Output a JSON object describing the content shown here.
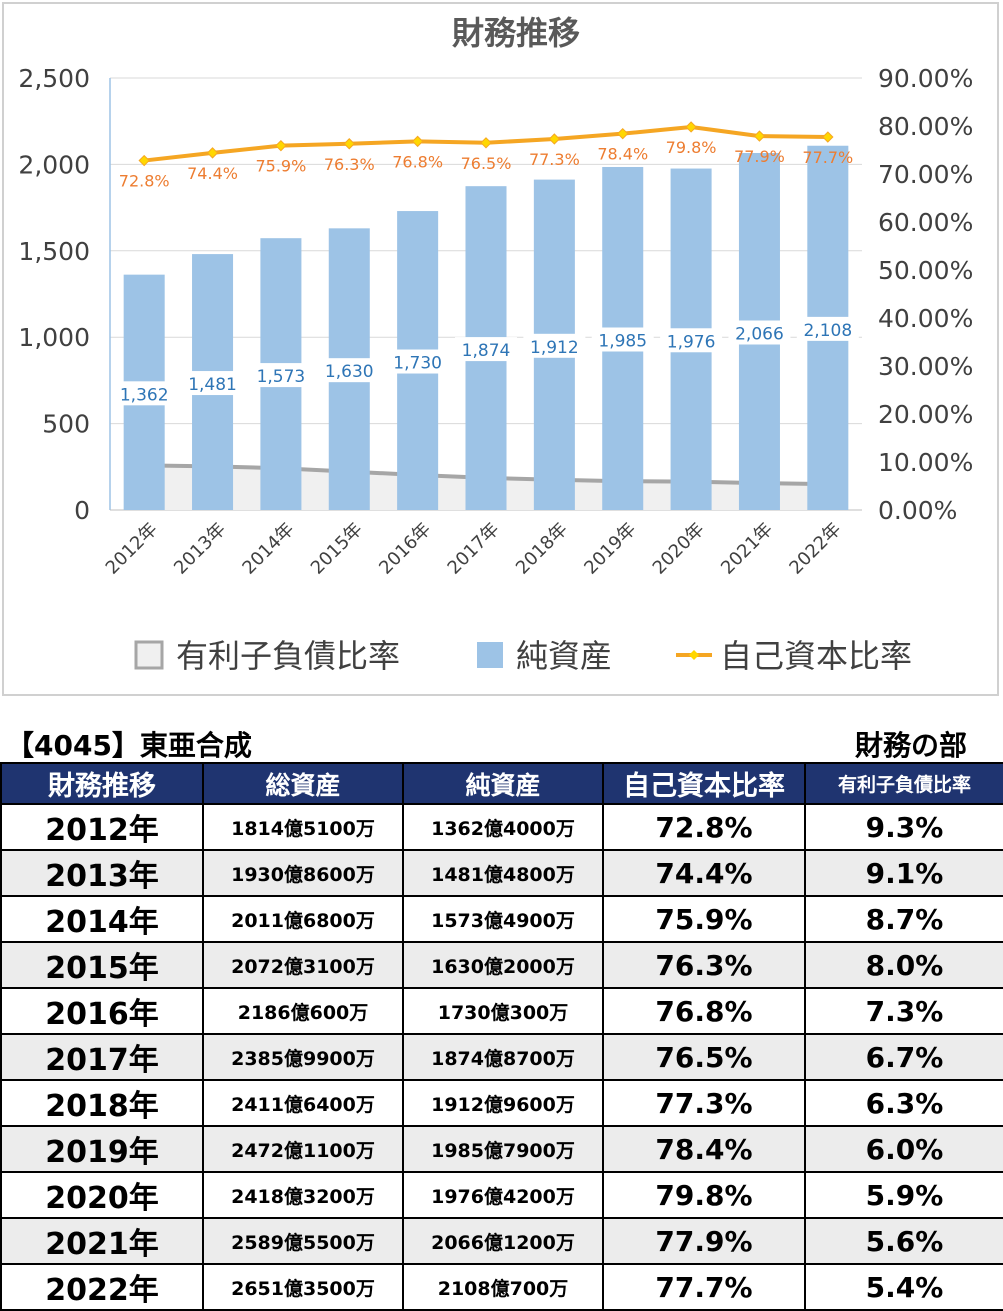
{
  "chart_data": {
    "type": "bar",
    "title": "財務推移",
    "categories": [
      "2012年",
      "2013年",
      "2014年",
      "2015年",
      "2016年",
      "2017年",
      "2018年",
      "2019年",
      "2020年",
      "2021年",
      "2022年"
    ],
    "series": [
      {
        "name": "純資産",
        "kind": "bar",
        "axis": "left",
        "color": "#9dc3e6",
        "values": [
          1362,
          1481,
          1573,
          1630,
          1730,
          1874,
          1912,
          1985,
          1976,
          2066,
          2108
        ],
        "labels": [
          "1,362",
          "1,481",
          "1,573",
          "1,630",
          "1,730",
          "1,874",
          "1,912",
          "1,985",
          "1,976",
          "2,066",
          "2,108"
        ]
      },
      {
        "name": "自己資本比率",
        "kind": "line",
        "axis": "right",
        "color": "#f5a623",
        "label_color": "#ed7d31",
        "values": [
          72.8,
          74.4,
          75.9,
          76.3,
          76.8,
          76.5,
          77.3,
          78.4,
          79.8,
          77.9,
          77.7
        ],
        "labels": [
          "72.8%",
          "74.4%",
          "75.9%",
          "76.3%",
          "76.8%",
          "76.5%",
          "77.3%",
          "78.4%",
          "79.8%",
          "77.9%",
          "77.7%"
        ]
      },
      {
        "name": "有利子負債比率",
        "kind": "area",
        "axis": "right",
        "color": "#f0f0f0",
        "stroke": "#a6a6a6",
        "values": [
          9.3,
          9.1,
          8.7,
          8.0,
          7.3,
          6.7,
          6.3,
          6.0,
          5.9,
          5.6,
          5.4
        ]
      }
    ],
    "y_left": {
      "min": 0,
      "max": 2500,
      "ticks": [
        "0",
        "500",
        "1,000",
        "1,500",
        "2,000",
        "2,500"
      ]
    },
    "y_right": {
      "min": 0,
      "max": 90,
      "ticks": [
        "0.00%",
        "10.00%",
        "20.00%",
        "30.00%",
        "40.00%",
        "50.00%",
        "60.00%",
        "70.00%",
        "80.00%",
        "90.00%"
      ]
    },
    "grid": true,
    "legend_position": "bottom",
    "legend": [
      "有利子負債比率",
      "純資産",
      "自己資本比率"
    ]
  },
  "company": "【4045】東亜合成",
  "section": "財務の部",
  "table": {
    "headers": [
      "財務推移",
      "総資産",
      "純資産",
      "自己資本比率",
      "有利子負債比率"
    ],
    "rows": [
      [
        "2012年",
        "1814億5100万",
        "1362億4000万",
        "72.8%",
        "9.3%"
      ],
      [
        "2013年",
        "1930億8600万",
        "1481億4800万",
        "74.4%",
        "9.1%"
      ],
      [
        "2014年",
        "2011億6800万",
        "1573億4900万",
        "75.9%",
        "8.7%"
      ],
      [
        "2015年",
        "2072億3100万",
        "1630億2000万",
        "76.3%",
        "8.0%"
      ],
      [
        "2016年",
        "2186億600万",
        "1730億300万",
        "76.8%",
        "7.3%"
      ],
      [
        "2017年",
        "2385億9900万",
        "1874億8700万",
        "76.5%",
        "6.7%"
      ],
      [
        "2018年",
        "2411億6400万",
        "1912億9600万",
        "77.3%",
        "6.3%"
      ],
      [
        "2019年",
        "2472億1100万",
        "1985億7900万",
        "78.4%",
        "6.0%"
      ],
      [
        "2020年",
        "2418億3200万",
        "1976億4200万",
        "79.8%",
        "5.9%"
      ],
      [
        "2021年",
        "2589億5500万",
        "2066億1200万",
        "77.9%",
        "5.6%"
      ],
      [
        "2022年",
        "2651億3500万",
        "2108億700万",
        "77.7%",
        "5.4%"
      ]
    ]
  }
}
